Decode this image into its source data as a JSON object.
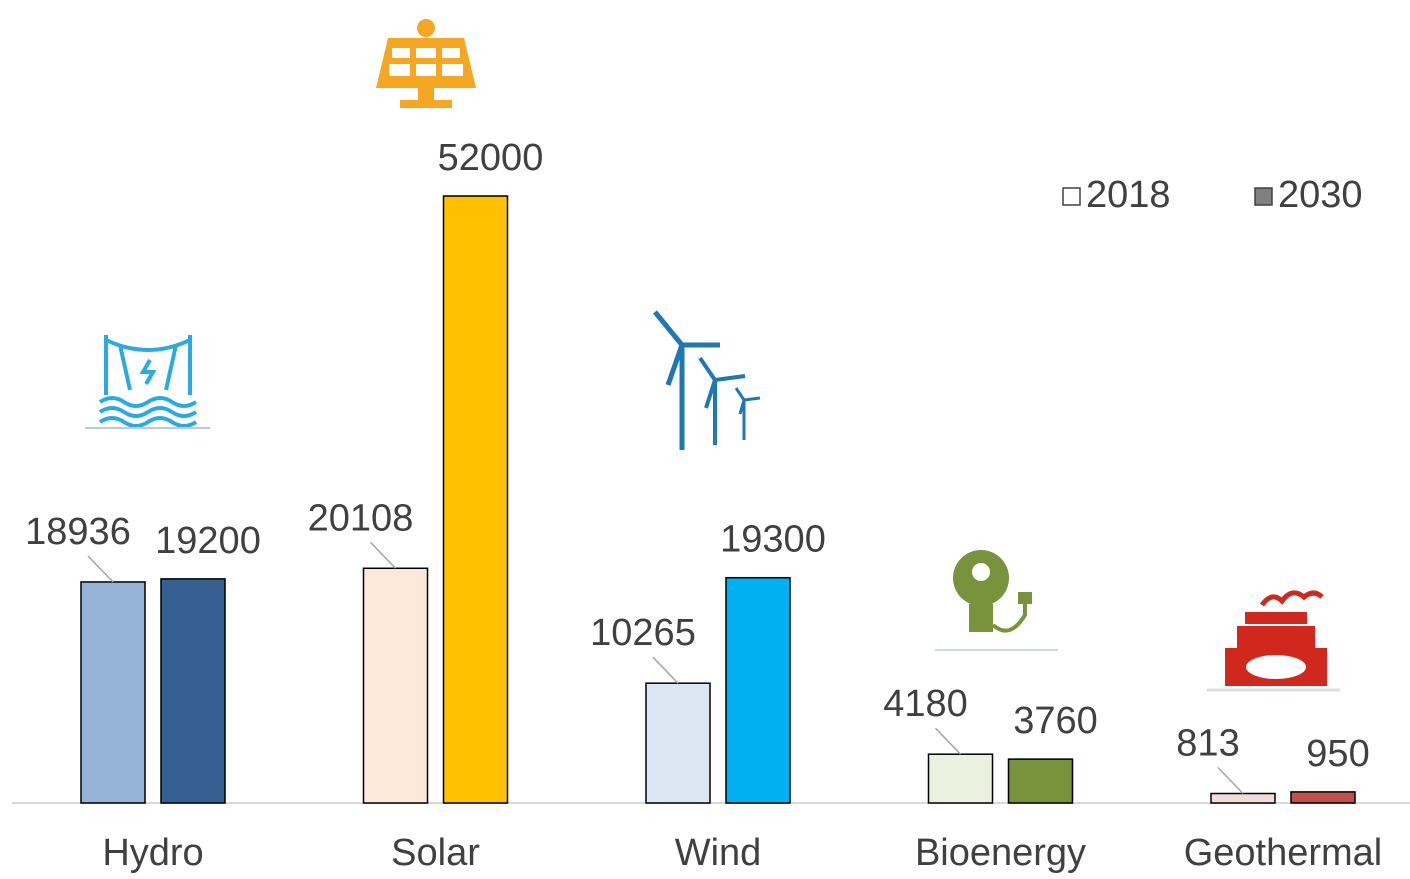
{
  "chart_data": {
    "type": "bar",
    "categories": [
      "Hydro",
      "Solar",
      "Wind",
      "Bioenergy",
      "Geothermal"
    ],
    "series": [
      {
        "name": "2018",
        "color": "#ffffff",
        "colors": [
          "#95b3d7",
          "#fde9d9",
          "#dce6f2",
          "#ebf1de",
          "#f2dcdb"
        ],
        "values": [
          18936,
          20108,
          10265,
          4180,
          813
        ]
      },
      {
        "name": "2030",
        "color": "#808080",
        "colors": [
          "#376092",
          "#ffc000",
          "#00b0f0",
          "#77933c",
          "#c0504d"
        ],
        "values": [
          19200,
          52000,
          19300,
          3760,
          950
        ]
      }
    ],
    "legend": "top-right"
  }
}
